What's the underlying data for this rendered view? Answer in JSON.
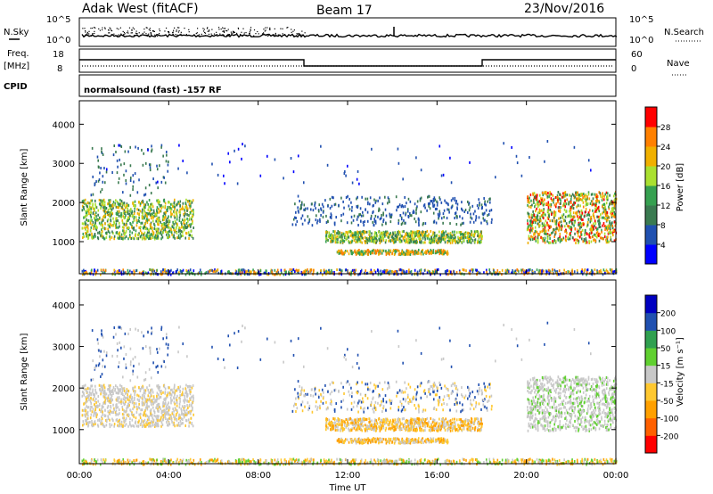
{
  "header": {
    "title": "Adak West (fitACF)",
    "beam": "Beam 17",
    "date": "23/Nov/2016"
  },
  "strip_labels": {
    "nsky": "N.Sky",
    "nsearch": "N.Search",
    "freq_line1": "Freq.",
    "freq_line2": "[MHz]",
    "nave": "Nave",
    "cpid": "CPID",
    "mode": "normalsound (fast) -157 RF"
  },
  "noise_ticks_left": [
    "10^5",
    "10^0"
  ],
  "noise_ticks_right": [
    "10^5",
    "10^0"
  ],
  "freq_ticks_left": [
    "18",
    "8"
  ],
  "freq_ticks_right": [
    "60",
    "0"
  ],
  "colors": {
    "scale": [
      "#0000ff",
      "#2050b0",
      "#3a7a50",
      "#36a050",
      "#aae030",
      "#f0b000",
      "#ff8000",
      "#ff0000"
    ],
    "vel_scale": [
      "#ff0000",
      "#ff6000",
      "#ffa000",
      "#ffc830",
      "#c8c8c8",
      "#60d030",
      "#30a050",
      "#2050b0",
      "#0000c0"
    ],
    "ground": "#c0c0c0"
  },
  "chart_data": [
    {
      "type": "heatmap",
      "name": "power",
      "ylabel": "Slant Range [km]",
      "yticks": [
        1000,
        2000,
        3000,
        4000
      ],
      "ylim": [
        180,
        4600
      ],
      "xlim": [
        0,
        24
      ],
      "colorbar_label": "Power [dB]",
      "colorbar_ticks": [
        "4",
        "8",
        "12",
        "16",
        "20",
        "24",
        "28"
      ],
      "colorbar_range": [
        0,
        30
      ]
    },
    {
      "type": "heatmap",
      "name": "velocity",
      "ylabel": "Slant Range [km]",
      "yticks": [
        1000,
        2000,
        3000,
        4000
      ],
      "ylim": [
        180,
        4600
      ],
      "xlim": [
        0,
        24
      ],
      "xticks": [
        "00:00",
        "04:00",
        "08:00",
        "12:00",
        "16:00",
        "20:00",
        "00:00"
      ],
      "xlabel": "Time UT",
      "colorbar_label": "Velocity [m s⁻¹]",
      "colorbar_ticks": [
        "-200",
        "-100",
        "-50",
        "-15",
        "15",
        "50",
        "100",
        "200"
      ],
      "colorbar_range": [
        -250,
        250
      ]
    }
  ]
}
